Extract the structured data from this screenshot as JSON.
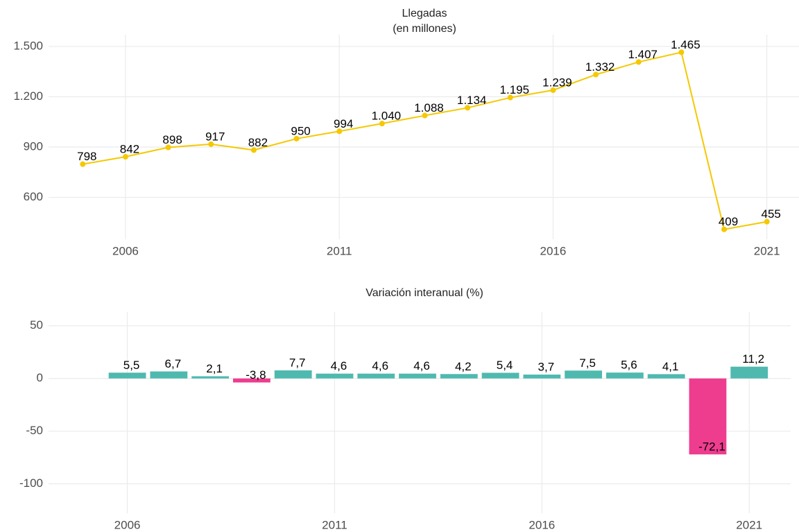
{
  "chart_data": [
    {
      "type": "line",
      "title": "Llegadas",
      "subtitle": "(en millones)",
      "x": [
        2005,
        2006,
        2007,
        2008,
        2009,
        2010,
        2011,
        2012,
        2013,
        2014,
        2015,
        2016,
        2017,
        2018,
        2019,
        2020,
        2021
      ],
      "values": [
        798,
        842,
        898,
        917,
        882,
        950,
        994,
        1040,
        1088,
        1134,
        1195,
        1239,
        1332,
        1407,
        1465,
        409,
        455
      ],
      "value_labels": [
        "798",
        "842",
        "898",
        "917",
        "882",
        "950",
        "994",
        "1.040",
        "1.088",
        "1.134",
        "1.195",
        "1.239",
        "1.332",
        "1.407",
        "1.465",
        "409",
        "455"
      ],
      "color": "#f5c800",
      "xlim": [
        2004.2,
        2021.8
      ],
      "xticks": [
        2006,
        2011,
        2016,
        2021
      ],
      "ylim": [
        350,
        1570
      ],
      "yticks": [
        600,
        900,
        {
          "value": 1200,
          "label": "1.200"
        },
        {
          "value": 1500,
          "label": "1.500"
        }
      ],
      "grid": true
    },
    {
      "type": "bar",
      "title": "Variación interanual (%)",
      "x": [
        2006,
        2007,
        2008,
        2009,
        2010,
        2011,
        2012,
        2013,
        2014,
        2015,
        2016,
        2017,
        2018,
        2019,
        2020,
        2021
      ],
      "values": [
        5.5,
        6.7,
        2.1,
        -3.8,
        7.7,
        4.6,
        4.6,
        4.6,
        4.2,
        5.4,
        3.7,
        7.5,
        5.6,
        4.1,
        -72.1,
        11.2
      ],
      "value_labels": [
        "5,5",
        "6,7",
        "2,1",
        "-3,8",
        "7,7",
        "4,6",
        "4,6",
        "4,6",
        "4,2",
        "5,4",
        "3,7",
        "7,5",
        "5,6",
        "4,1",
        "-72,1",
        "11,2"
      ],
      "colors": {
        "positive": "#4fb9af",
        "negative": "#ee3d8f"
      },
      "xlim": [
        2004.1,
        2022
      ],
      "xticks": [
        2006,
        2011,
        2016,
        2021
      ],
      "ylim": [
        -128,
        63
      ],
      "yticks": [
        50,
        0,
        -50,
        -100
      ],
      "grid": true
    }
  ]
}
